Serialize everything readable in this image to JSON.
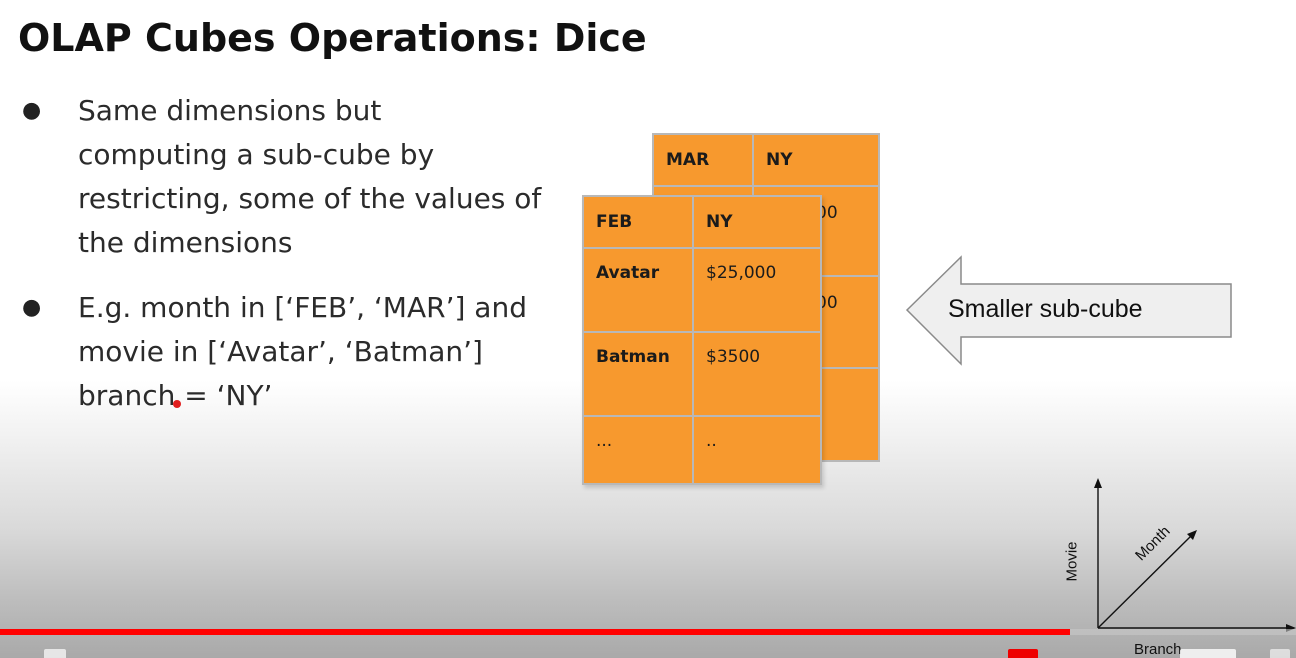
{
  "slide": {
    "title": "OLAP Cubes Operations: Dice",
    "bullets": [
      {
        "marker": "●",
        "text": "Same dimensions but\ncomputing a sub-cube by\nrestricting, some of the values of\nthe dimensions"
      },
      {
        "marker": "●",
        "text": "E.g. month in [‘FEB’, ‘MAR’] and\nmovie in [‘Avatar’, ‘Batman’]\nbranch = ‘NY’"
      }
    ]
  },
  "back_table": {
    "header": [
      "MAR",
      "NY"
    ],
    "visible_fragments": [
      "00",
      "00",
      ")"
    ]
  },
  "front_table": {
    "header": [
      "FEB",
      "NY"
    ],
    "rows": [
      [
        "Avatar",
        "$25,000"
      ],
      [
        "Batman",
        "$3500"
      ],
      [
        "...",
        ".."
      ]
    ]
  },
  "callout": {
    "label": "Smaller sub-cube"
  },
  "axes": {
    "y": "Movie",
    "diagonal": "Month",
    "x": "Branch"
  },
  "player": {
    "progress": 0.826,
    "accent": "#ff0000"
  },
  "colors": {
    "cube_fill": "#f7992e",
    "callout_fill": "#efefef"
  }
}
